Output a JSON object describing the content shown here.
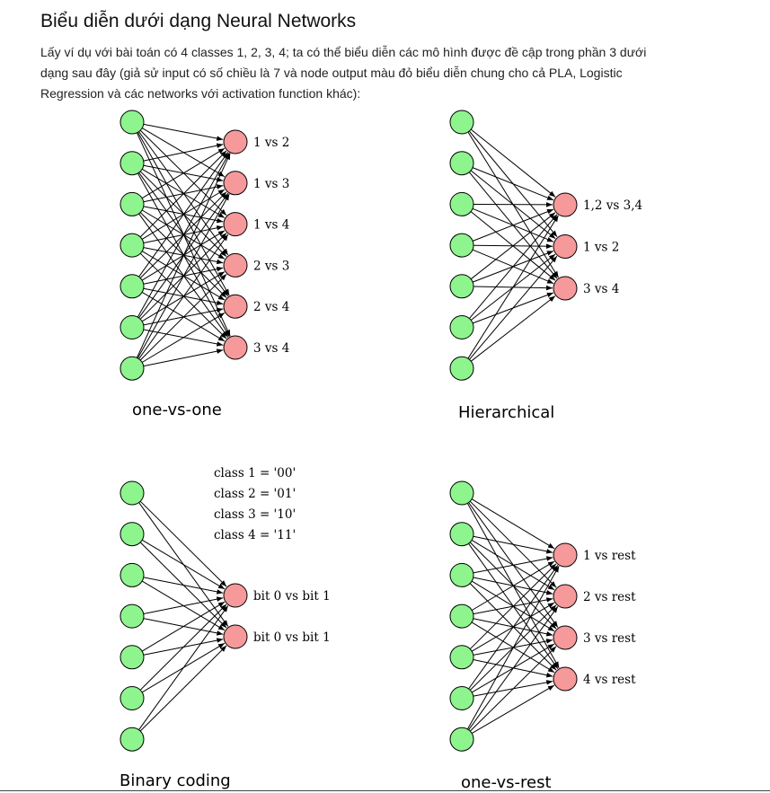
{
  "heading": "Biểu diễn dưới dạng Neural Networks",
  "intro": "Lấy ví dụ với bài toán có 4 classes 1, 2, 3, 4; ta có thể biểu diễn các mô hình được đề cập trong phần 3 dưới dạng sau đây (giả sử input có số chiều là 7 và node output màu đỏ biểu diễn chung cho cả PLA, Logistic Regression và các networks với activation function khác):",
  "colors": {
    "input_node": "#8ef58e",
    "output_node": "#f6999a",
    "edge": "#000000"
  },
  "diagrams": [
    {
      "caption": "one-vs-one",
      "input_count": 7,
      "outputs": [
        "1 vs 2",
        "1 vs 3",
        "1 vs 4",
        "2 vs 3",
        "2 vs 4",
        "3 vs 4"
      ],
      "code_lines": []
    },
    {
      "caption": "Hierarchical",
      "input_count": 7,
      "outputs": [
        "1,2 vs 3,4",
        "1 vs 2",
        "3 vs 4"
      ],
      "code_lines": []
    },
    {
      "caption": "Binary coding",
      "input_count": 7,
      "outputs": [
        "bit 0 vs bit 1",
        "bit 0 vs bit 1"
      ],
      "code_lines": [
        "class 1 = '00'",
        "class 2 = '01'",
        "class 3 = '10'",
        "class 4 = '11'"
      ]
    },
    {
      "caption": "one-vs-rest",
      "input_count": 7,
      "outputs": [
        "1 vs rest",
        "2 vs rest",
        "3 vs rest",
        "4 vs rest"
      ],
      "code_lines": []
    }
  ]
}
